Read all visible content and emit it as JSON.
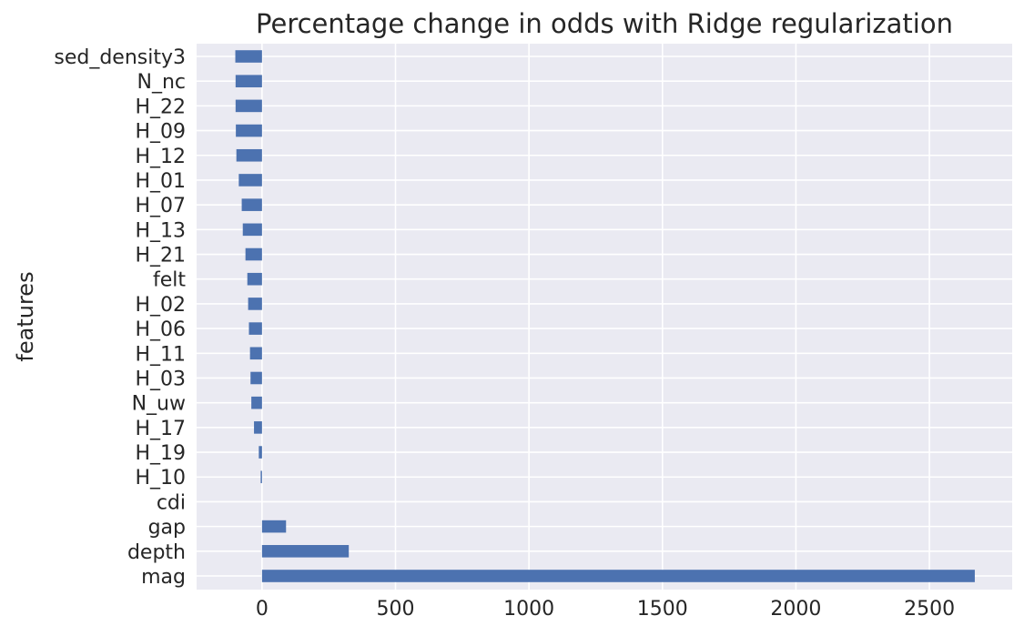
{
  "chart_data": {
    "type": "bar",
    "orientation": "horizontal",
    "title": "Percentage change in odds with Ridge regularization",
    "xlabel": "",
    "ylabel": "features",
    "xlim": [
      -245,
      2810
    ],
    "xticks": [
      0,
      500,
      1000,
      1500,
      2000,
      2500
    ],
    "grid": true,
    "legend": "none",
    "bar_color": "#4c72b0",
    "background_color": "#eaeaf2",
    "categories": [
      "sed_density3",
      "N_nc",
      "H_22",
      "H_09",
      "H_12",
      "H_01",
      "H_07",
      "H_13",
      "H_21",
      "felt",
      "H_02",
      "H_06",
      "H_11",
      "H_03",
      "N_uw",
      "H_17",
      "H_19",
      "H_10",
      "cdi",
      "gap",
      "depth",
      "mag"
    ],
    "values": [
      -100,
      -99,
      -99,
      -98,
      -96,
      -87,
      -76,
      -72,
      -62,
      -55,
      -52,
      -49,
      -45,
      -43,
      -40,
      -30,
      -12,
      -5,
      0,
      90,
      325,
      2670
    ]
  }
}
